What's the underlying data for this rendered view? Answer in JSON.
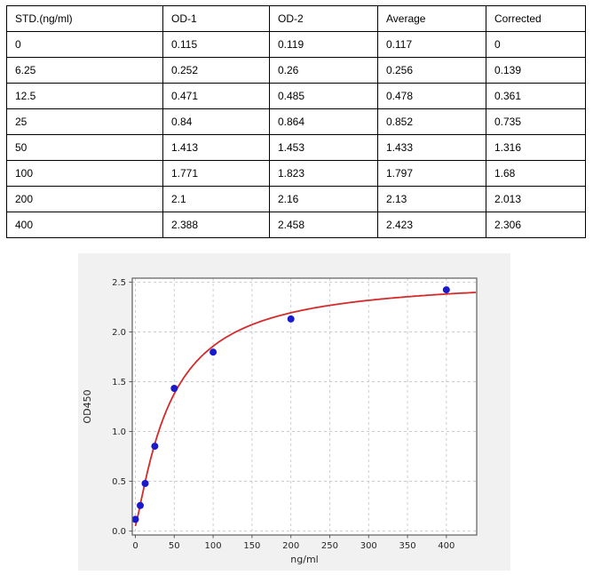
{
  "table": {
    "columns": [
      "STD.(ng/ml)",
      "OD-1",
      "OD-2",
      "Average",
      "Corrected"
    ],
    "rows": [
      [
        "0",
        "0.115",
        "0.119",
        "0.117",
        "0"
      ],
      [
        "6.25",
        "0.252",
        "0.26",
        "0.256",
        "0.139"
      ],
      [
        "12.5",
        "0.471",
        "0.485",
        "0.478",
        "0.361"
      ],
      [
        "25",
        "0.84",
        "0.864",
        "0.852",
        "0.735"
      ],
      [
        "50",
        "1.413",
        "1.453",
        "1.433",
        "1.316"
      ],
      [
        "100",
        "1.771",
        "1.823",
        "1.797",
        "1.68"
      ],
      [
        "200",
        "2.1",
        "2.16",
        "2.13",
        "2.013"
      ],
      [
        "400",
        "2.388",
        "2.458",
        "2.423",
        "2.306"
      ]
    ]
  },
  "chart_data": {
    "type": "scatter",
    "title": "",
    "xlabel": "ng/ml",
    "ylabel": "OD450",
    "x": [
      0,
      6.25,
      12.5,
      25,
      50,
      100,
      200,
      400
    ],
    "y": [
      0.117,
      0.256,
      0.478,
      0.852,
      1.433,
      1.797,
      2.13,
      2.423
    ],
    "series": [
      {
        "name": "standard-points",
        "kind": "scatter"
      },
      {
        "name": "fitted-curve",
        "kind": "line"
      }
    ],
    "fit": {
      "model": "4PL",
      "a": 0.05,
      "b": 1.2,
      "c": 45,
      "d": 2.55
    },
    "xlim": [
      -4,
      439
    ],
    "ylim": [
      -0.04,
      2.54
    ],
    "xticks": [
      0,
      50,
      100,
      150,
      200,
      250,
      300,
      350,
      400
    ],
    "yticks": [
      "0.0",
      "0.5",
      "1.0",
      "1.5",
      "2.0",
      "2.5"
    ],
    "grid": true,
    "legend": "none",
    "point_color": "#1a1acd",
    "curve_color": "#d42a2a",
    "figure_bg": "#f1f1f1",
    "plot_bg": "#ffffff",
    "grid_color": "#c9c9c9",
    "spine_color": "#5e5e5e",
    "tick_color": "#262626"
  }
}
